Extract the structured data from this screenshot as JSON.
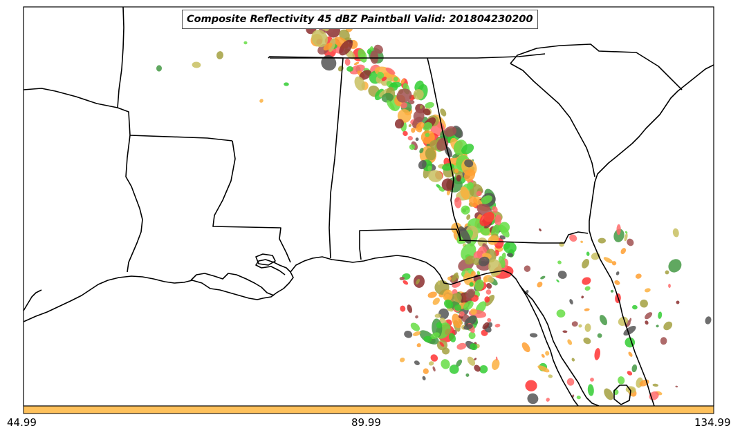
{
  "title": "Composite Reflectivity 45 dBZ Paintball Valid: 201804230200",
  "colorbar": {
    "fill_color": "#fec15c",
    "ticks": [
      "44.99",
      "89.99",
      "134.99"
    ]
  },
  "colors": {
    "land_outline": "#000000",
    "background": "#ffffff",
    "paintball": [
      "#ff3333",
      "#ff6b6b",
      "#fbb040",
      "#33cc33",
      "#449944",
      "#8b2e2e",
      "#a05050",
      "#a3a040",
      "#c8c060",
      "#555555",
      "#ff9f30",
      "#66dd44"
    ]
  }
}
